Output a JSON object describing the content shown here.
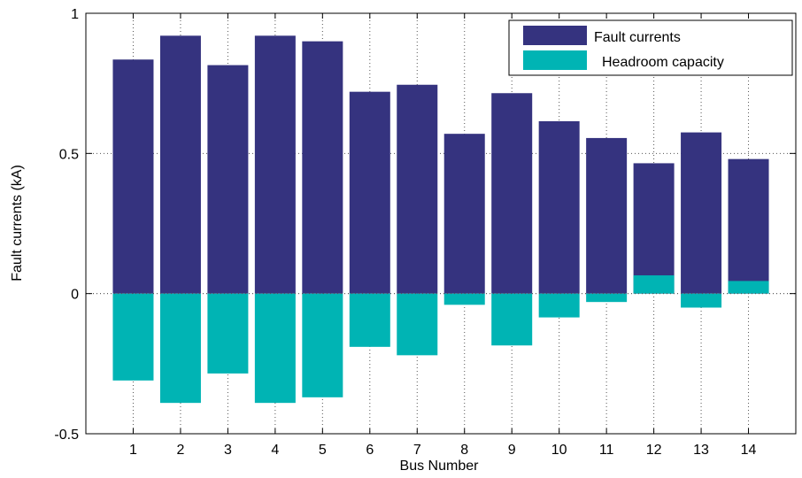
{
  "chart_data": {
    "type": "bar",
    "categories": [
      "1",
      "2",
      "3",
      "4",
      "5",
      "6",
      "7",
      "8",
      "9",
      "10",
      "11",
      "12",
      "13",
      "14"
    ],
    "series": [
      {
        "name": "Fault currents",
        "color": "#35337f",
        "values": [
          0.835,
          0.92,
          0.815,
          0.92,
          0.9,
          0.72,
          0.745,
          0.57,
          0.715,
          0.615,
          0.555,
          0.465,
          0.575,
          0.48
        ]
      },
      {
        "name": "Headroom capacity",
        "color": "#00b4b4",
        "values": [
          -0.31,
          -0.39,
          -0.285,
          -0.39,
          -0.37,
          -0.19,
          -0.22,
          -0.04,
          -0.185,
          -0.085,
          -0.03,
          0.065,
          -0.05,
          0.045
        ]
      }
    ],
    "title": "",
    "xlabel": "Bus Number",
    "ylabel": "Fault currents (kA)",
    "ylim": [
      -0.5,
      1
    ],
    "yticks": [
      -0.5,
      0,
      0.5,
      1
    ],
    "ytick_labels": [
      "-0.5",
      "0",
      "0.5",
      "1"
    ],
    "grid": true,
    "legend_position": "top-right"
  }
}
